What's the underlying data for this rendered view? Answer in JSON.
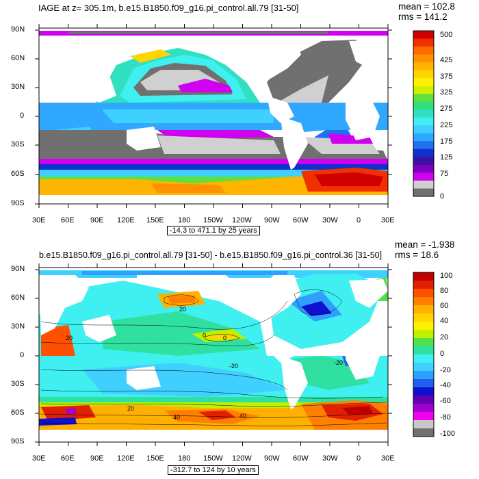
{
  "top_panel": {
    "title": "IAGE at z= 305.1m, b.e15.B1850.f09_g16.pi_control.all.79 [31-50]",
    "stats": {
      "mean": "mean = 102.8",
      "rms": "rms = 141.2"
    },
    "range_label": "-14.3 to 471.1 by 25 years",
    "colorbar": {
      "labels": [
        "500",
        "425",
        "375",
        "325",
        "275",
        "225",
        "175",
        "125",
        "75",
        "0"
      ],
      "colors": [
        "#d10000",
        "#f03000",
        "#ff6a00",
        "#ff9200",
        "#ffb400",
        "#ffd400",
        "#fff000",
        "#d0f000",
        "#60e040",
        "#30e080",
        "#30e0c0",
        "#40f0f0",
        "#40d0ff",
        "#30a8ff",
        "#2070f0",
        "#1030d0",
        "#4010a0",
        "#8000c0",
        "#d000f0",
        "#d0d0d0",
        "#707070"
      ]
    }
  },
  "bottom_panel": {
    "title": "b.e15.B1850.f09_g16.pi_control.all.79 [31-50] - b.e15.B1850.f09_g16.pi_control.36 [31-50]",
    "stats": {
      "mean": "mean = -1.938",
      "rms": "rms = 18.6"
    },
    "range_label": "-312.7 to 124 by 10 years",
    "colorbar": {
      "labels": [
        "100",
        "80",
        "60",
        "40",
        "20",
        "0",
        "-20",
        "-40",
        "-60",
        "-80",
        "-100"
      ],
      "colors": [
        "#c00000",
        "#e02000",
        "#ff5000",
        "#ff8000",
        "#ffb000",
        "#ffd400",
        "#fff000",
        "#c0f000",
        "#50e050",
        "#30e0a0",
        "#40f0f0",
        "#40d0ff",
        "#30a0ff",
        "#2060f0",
        "#1010d0",
        "#6000b0",
        "#a000d0",
        "#f000f0",
        "#c8c8c8",
        "#707070"
      ]
    },
    "contour_labels": [
      "0",
      "-20",
      "-20",
      "20",
      "20",
      "0",
      "20",
      "40",
      "40"
    ]
  },
  "axes": {
    "lat_labels": [
      "90N",
      "60N",
      "30N",
      "0",
      "30S",
      "60S",
      "90S"
    ],
    "lon_labels": [
      "30E",
      "60E",
      "90E",
      "120E",
      "150E",
      "180",
      "150W",
      "120W",
      "90W",
      "60W",
      "30W",
      "0",
      "30E"
    ]
  },
  "colors": {
    "land": "#ffffff",
    "high_age_gray": "#707070",
    "light_gray": "#d0d0d0"
  }
}
